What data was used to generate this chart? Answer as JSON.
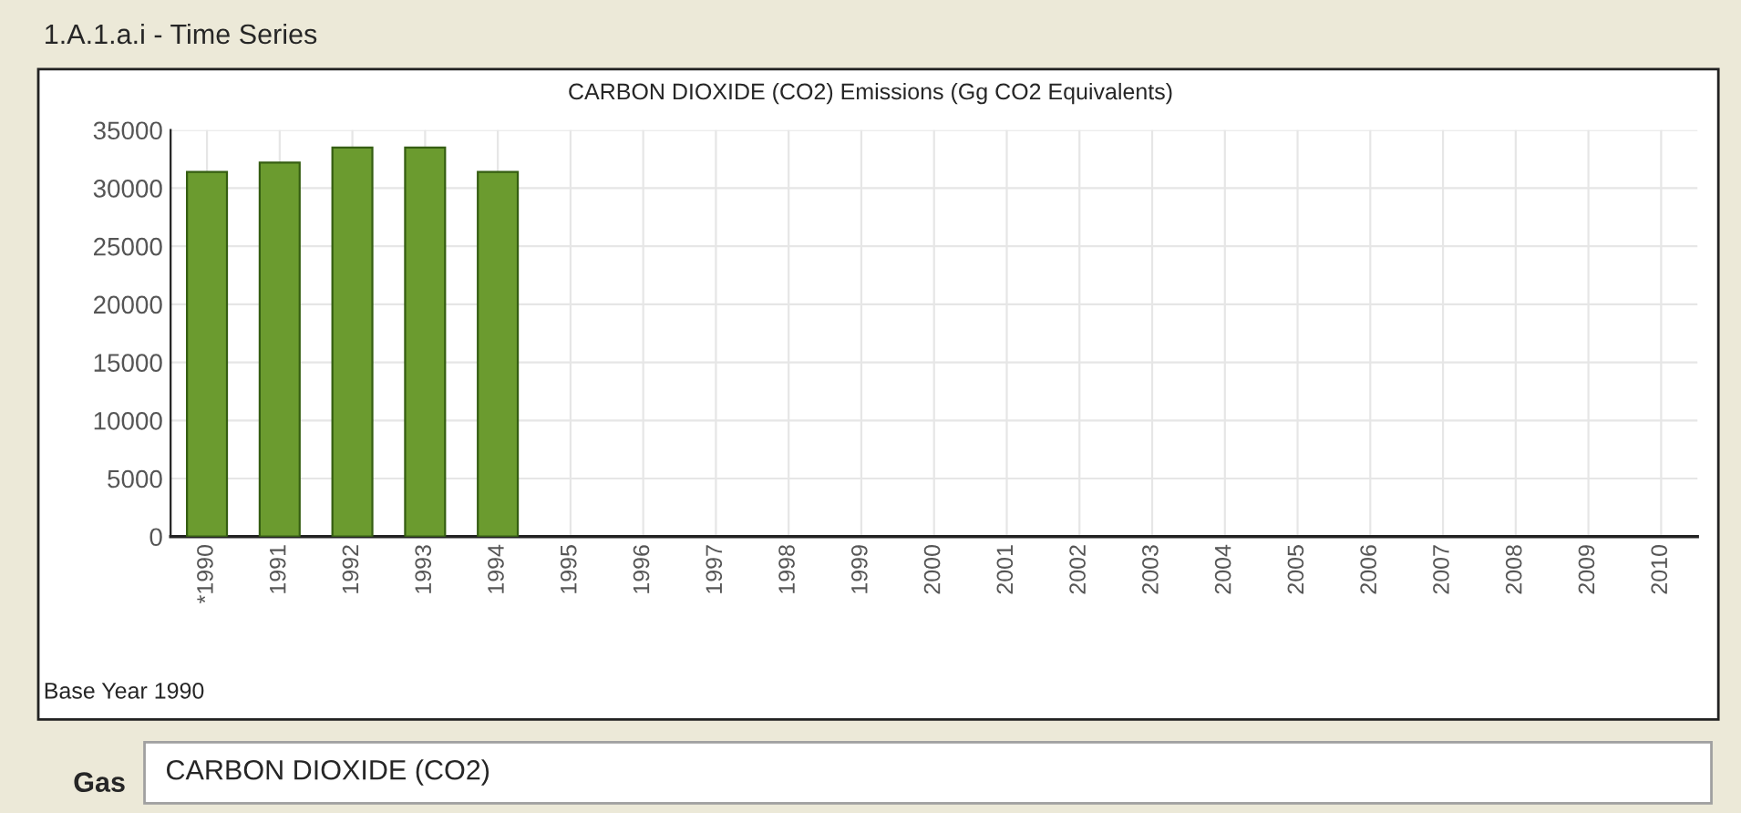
{
  "chart_data": {
    "type": "bar",
    "title": "CARBON DIOXIDE (CO2) Emissions (Gg CO2 Equivalents)",
    "categories": [
      "*1990",
      "1991",
      "1992",
      "1993",
      "1994",
      "1995",
      "1996",
      "1997",
      "1998",
      "1999",
      "2000",
      "2001",
      "2002",
      "2003",
      "2004",
      "2005",
      "2006",
      "2007",
      "2008",
      "2009",
      "2010"
    ],
    "values": [
      31400,
      32200,
      33500,
      33500,
      31400,
      null,
      null,
      null,
      null,
      null,
      null,
      null,
      null,
      null,
      null,
      null,
      null,
      null,
      null,
      null,
      null
    ],
    "color": "#6b9b2f",
    "ylim": [
      0,
      35000
    ],
    "yticks": [
      0,
      5000,
      10000,
      15000,
      20000,
      25000,
      30000,
      35000
    ],
    "grid": true,
    "legend": false,
    "annotations": [
      "1.A.1.a.i - Time Series",
      "Base Year 1990",
      "Gas",
      "CARBON DIOXIDE (CO2)"
    ]
  }
}
